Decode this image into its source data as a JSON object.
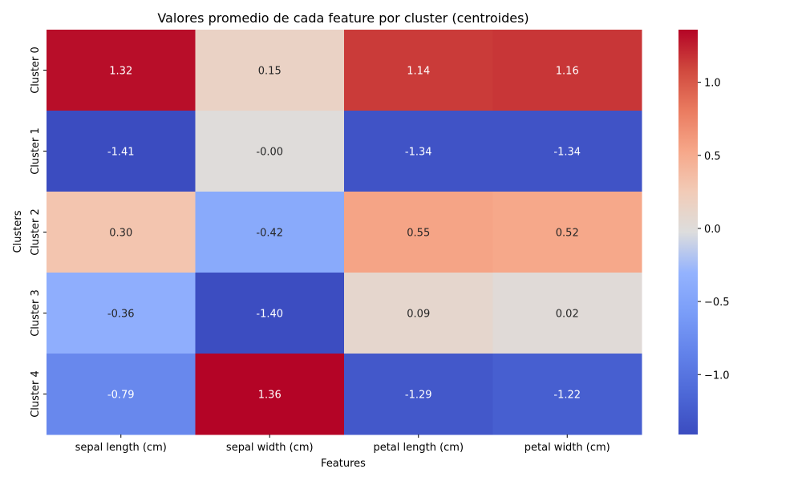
{
  "chart_data": {
    "type": "heatmap",
    "title": "Valores promedio de cada feature por cluster (centroides)",
    "xlabel": "Features",
    "ylabel": "Clusters",
    "x_categories": [
      "sepal length (cm)",
      "sepal width (cm)",
      "petal length (cm)",
      "petal width (cm)"
    ],
    "y_categories": [
      "Cluster 0",
      "Cluster 1",
      "Cluster 2",
      "Cluster 3",
      "Cluster 4"
    ],
    "values": [
      [
        1.32,
        0.15,
        1.14,
        1.16
      ],
      [
        -1.41,
        -0.0,
        -1.34,
        -1.34
      ],
      [
        0.3,
        -0.42,
        0.55,
        0.52
      ],
      [
        -0.36,
        -1.4,
        0.09,
        0.02
      ],
      [
        -0.79,
        1.36,
        -1.29,
        -1.22
      ]
    ],
    "value_labels": [
      [
        "1.32",
        "0.15",
        "1.14",
        "1.16"
      ],
      [
        "-1.41",
        "-0.00",
        "-1.34",
        "-1.34"
      ],
      [
        "0.30",
        "-0.42",
        "0.55",
        "0.52"
      ],
      [
        "-0.36",
        "-1.40",
        "0.09",
        "0.02"
      ],
      [
        "-0.79",
        "1.36",
        "-1.29",
        "-1.22"
      ]
    ],
    "colormap": "coolwarm",
    "color_range": [
      -1.41,
      1.36
    ],
    "colorbar_ticks": [
      1.0,
      0.5,
      0.0,
      -0.5,
      -1.0
    ],
    "colorbar_tick_labels": [
      "1.0",
      "0.5",
      "0.0",
      "−0.5",
      "−1.0"
    ],
    "grid": false,
    "legend": "colorbar-right"
  }
}
